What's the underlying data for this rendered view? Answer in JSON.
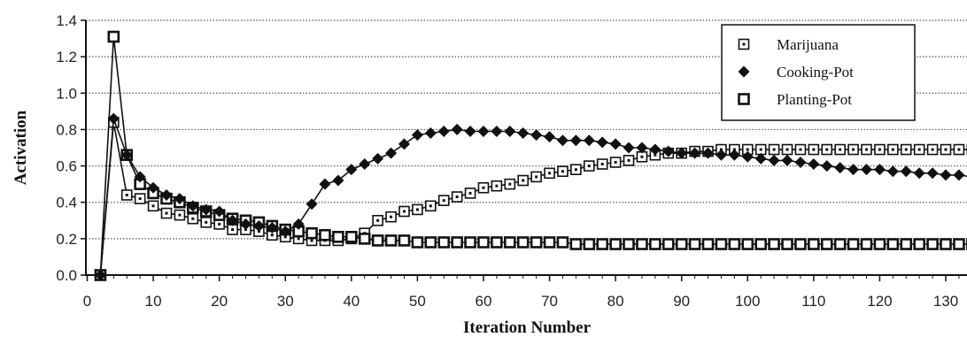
{
  "chart_data": {
    "type": "line",
    "title": "",
    "xlabel": "Iteration Number",
    "ylabel": "Activation",
    "xlim": [
      0,
      135
    ],
    "ylim": [
      0,
      1.4
    ],
    "x_ticks": [
      "0",
      "10",
      "20",
      "30",
      "40",
      "50",
      "60",
      "70",
      "80",
      "90",
      "100",
      "110",
      "120",
      "130"
    ],
    "y_ticks": [
      "0.0",
      "0.2",
      "0.4",
      "0.6",
      "0.8",
      "1.0",
      "1.2",
      "1.4"
    ],
    "grid": "horizontal dotted",
    "legend_position": "top-right",
    "series": [
      {
        "name": "Marijuana",
        "marker": "dotted-square",
        "x": [
          2,
          4,
          6,
          8,
          10,
          12,
          14,
          16,
          18,
          20,
          22,
          24,
          26,
          28,
          30,
          32,
          34,
          36,
          38,
          40,
          42,
          44,
          46,
          48,
          50,
          52,
          54,
          56,
          58,
          60,
          62,
          64,
          66,
          68,
          70,
          72,
          74,
          76,
          78,
          80,
          82,
          84,
          86,
          88,
          90,
          92,
          94,
          96,
          98,
          100,
          102,
          104,
          106,
          108,
          110,
          112,
          114,
          116,
          118,
          120,
          122,
          124,
          126,
          128,
          130,
          132,
          134
        ],
        "y": [
          0.0,
          0.84,
          0.44,
          0.42,
          0.38,
          0.34,
          0.33,
          0.31,
          0.29,
          0.28,
          0.25,
          0.25,
          0.24,
          0.22,
          0.21,
          0.2,
          0.19,
          0.19,
          0.19,
          0.2,
          0.23,
          0.3,
          0.32,
          0.35,
          0.36,
          0.38,
          0.41,
          0.43,
          0.45,
          0.48,
          0.49,
          0.5,
          0.52,
          0.54,
          0.56,
          0.57,
          0.58,
          0.6,
          0.61,
          0.62,
          0.63,
          0.65,
          0.66,
          0.67,
          0.67,
          0.68,
          0.68,
          0.69,
          0.69,
          0.69,
          0.69,
          0.69,
          0.69,
          0.69,
          0.69,
          0.69,
          0.69,
          0.69,
          0.69,
          0.69,
          0.69,
          0.69,
          0.69,
          0.69,
          0.69,
          0.69,
          0.69
        ]
      },
      {
        "name": "Cooking-Pot",
        "marker": "diamond",
        "x": [
          2,
          4,
          6,
          8,
          10,
          12,
          14,
          16,
          18,
          20,
          22,
          24,
          26,
          28,
          30,
          32,
          34,
          36,
          38,
          40,
          42,
          44,
          46,
          48,
          50,
          52,
          54,
          56,
          58,
          60,
          62,
          64,
          66,
          68,
          70,
          72,
          74,
          76,
          78,
          80,
          82,
          84,
          86,
          88,
          90,
          92,
          94,
          96,
          98,
          100,
          102,
          104,
          106,
          108,
          110,
          112,
          114,
          116,
          118,
          120,
          122,
          124,
          126,
          128,
          130,
          132,
          134
        ],
        "y": [
          0.0,
          0.86,
          0.66,
          0.54,
          0.48,
          0.44,
          0.42,
          0.38,
          0.36,
          0.35,
          0.3,
          0.28,
          0.27,
          0.26,
          0.24,
          0.28,
          0.39,
          0.5,
          0.52,
          0.58,
          0.61,
          0.64,
          0.67,
          0.72,
          0.77,
          0.78,
          0.79,
          0.8,
          0.79,
          0.79,
          0.79,
          0.79,
          0.78,
          0.77,
          0.76,
          0.74,
          0.74,
          0.74,
          0.73,
          0.72,
          0.7,
          0.7,
          0.69,
          0.68,
          0.67,
          0.67,
          0.67,
          0.66,
          0.66,
          0.65,
          0.64,
          0.63,
          0.63,
          0.62,
          0.61,
          0.6,
          0.59,
          0.58,
          0.58,
          0.58,
          0.57,
          0.57,
          0.56,
          0.56,
          0.55,
          0.55,
          0.54
        ]
      },
      {
        "name": "Planting-Pot",
        "marker": "square",
        "x": [
          2,
          4,
          6,
          8,
          10,
          12,
          14,
          16,
          18,
          20,
          22,
          24,
          26,
          28,
          30,
          32,
          34,
          36,
          38,
          40,
          42,
          44,
          46,
          48,
          50,
          52,
          54,
          56,
          58,
          60,
          62,
          64,
          66,
          68,
          70,
          72,
          74,
          76,
          78,
          80,
          82,
          84,
          86,
          88,
          90,
          92,
          94,
          96,
          98,
          100,
          102,
          104,
          106,
          108,
          110,
          112,
          114,
          116,
          118,
          120,
          122,
          124,
          126,
          128,
          130,
          132,
          134
        ],
        "y": [
          0.0,
          1.31,
          0.66,
          0.5,
          0.45,
          0.42,
          0.4,
          0.37,
          0.35,
          0.33,
          0.31,
          0.3,
          0.29,
          0.27,
          0.25,
          0.24,
          0.23,
          0.22,
          0.21,
          0.21,
          0.2,
          0.19,
          0.19,
          0.19,
          0.18,
          0.18,
          0.18,
          0.18,
          0.18,
          0.18,
          0.18,
          0.18,
          0.18,
          0.18,
          0.18,
          0.18,
          0.17,
          0.17,
          0.17,
          0.17,
          0.17,
          0.17,
          0.17,
          0.17,
          0.17,
          0.17,
          0.17,
          0.17,
          0.17,
          0.17,
          0.17,
          0.17,
          0.17,
          0.17,
          0.17,
          0.17,
          0.17,
          0.17,
          0.17,
          0.17,
          0.17,
          0.17,
          0.17,
          0.17,
          0.17,
          0.17,
          0.17
        ]
      }
    ]
  },
  "colors": {
    "ink": "#111111",
    "grid": "#555555",
    "background": "#ffffff"
  }
}
